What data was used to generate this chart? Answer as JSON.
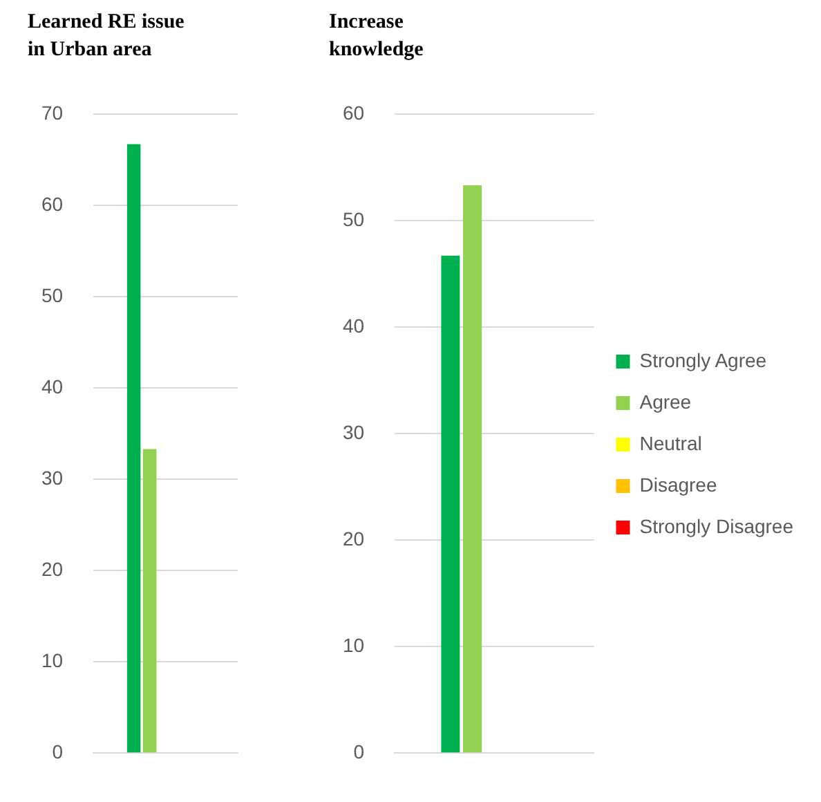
{
  "chart_data": [
    {
      "type": "bar",
      "title": "Learned RE issue in Urban area",
      "categories": [
        null
      ],
      "series": [
        {
          "color": "#00b050",
          "values": [
            66.7
          ]
        },
        {
          "color": "#92d050",
          "values": [
            33.3
          ]
        },
        {
          "color": "#ffff00",
          "values": [
            0
          ]
        },
        {
          "color": "#ffc000",
          "values": [
            0
          ]
        },
        {
          "color": "#ff0000",
          "values": [
            0
          ]
        }
      ],
      "ylim": [
        0,
        70
      ],
      "yticks": [
        0,
        10,
        20,
        30,
        40,
        50,
        60,
        70
      ],
      "grid": "y",
      "legend": false
    },
    {
      "type": "bar",
      "title": "Increase knowledge",
      "categories": [
        null
      ],
      "series": [
        {
          "name": "Strongly Agree",
          "color": "#00b050",
          "values": [
            46.7
          ]
        },
        {
          "name": "Agree",
          "color": "#92d050",
          "values": [
            53.3
          ]
        },
        {
          "name": "Neutral",
          "color": "#ffff00",
          "values": [
            0
          ]
        },
        {
          "name": "Disagree",
          "color": "#ffc000",
          "values": [
            0
          ]
        },
        {
          "name": "Strongly Disagree",
          "color": "#ff0000",
          "values": [
            0
          ]
        }
      ],
      "ylim": [
        0,
        60
      ],
      "yticks": [
        0,
        10,
        20,
        30,
        40,
        50,
        60
      ],
      "grid": "y",
      "legend": "right"
    }
  ]
}
